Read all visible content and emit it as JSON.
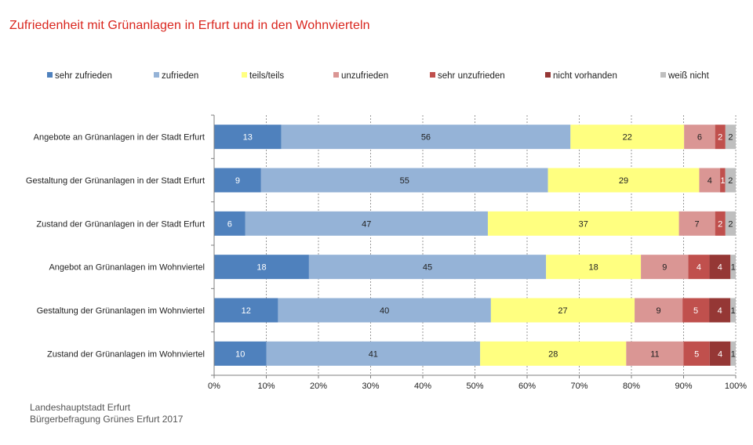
{
  "title": "Zufriedenheit mit Grünanlagen in Erfurt und in den Wohnvierteln",
  "source": {
    "line1": "Landeshauptstadt Erfurt",
    "line2": "Bürgerbefragung Grünes Erfurt 2017"
  },
  "chart_data": {
    "type": "bar",
    "orientation": "horizontal",
    "stacked": "percent",
    "title": "Zufriedenheit mit Grünanlagen in Erfurt und in den Wohnvierteln",
    "categories": [
      "Angebote an Grünanlagen in der Stadt Erfurt",
      "Gestaltung der Grünanlagen in der Stadt Erfurt",
      "Zustand der Grünanlagen in der Stadt Erfurt",
      "Angebot an Grünanlagen im Wohnviertel",
      "Gestaltung der Grünanlagen im Wohnviertel",
      "Zustand der Grünanlagen im Wohnviertel"
    ],
    "series": [
      {
        "name": "sehr zufrieden",
        "color": "#4f81bd",
        "values": [
          13,
          9,
          6,
          18,
          12,
          10
        ]
      },
      {
        "name": "zufrieden",
        "color": "#95b3d7",
        "values": [
          56,
          55,
          47,
          45,
          40,
          41
        ]
      },
      {
        "name": "teils/teils",
        "color": "#ffff80",
        "values": [
          22,
          29,
          37,
          18,
          27,
          28
        ]
      },
      {
        "name": "unzufrieden",
        "color": "#da9694",
        "values": [
          6,
          4,
          7,
          9,
          9,
          11
        ]
      },
      {
        "name": "sehr unzufrieden",
        "color": "#c0504d",
        "values": [
          2,
          1,
          2,
          4,
          5,
          5
        ]
      },
      {
        "name": "nicht vorhanden",
        "color": "#953735",
        "values": [
          0,
          0,
          0,
          4,
          4,
          4
        ]
      },
      {
        "name": "weiß nicht",
        "color": "#bfbfbf",
        "values": [
          2,
          2,
          2,
          1,
          1,
          1
        ]
      }
    ],
    "xticks": [
      "0%",
      "10%",
      "20%",
      "30%",
      "40%",
      "50%",
      "60%",
      "70%",
      "80%",
      "90%",
      "100%"
    ],
    "xlim": [
      0,
      100
    ],
    "grid": "vertical dashed",
    "legend": "top"
  }
}
